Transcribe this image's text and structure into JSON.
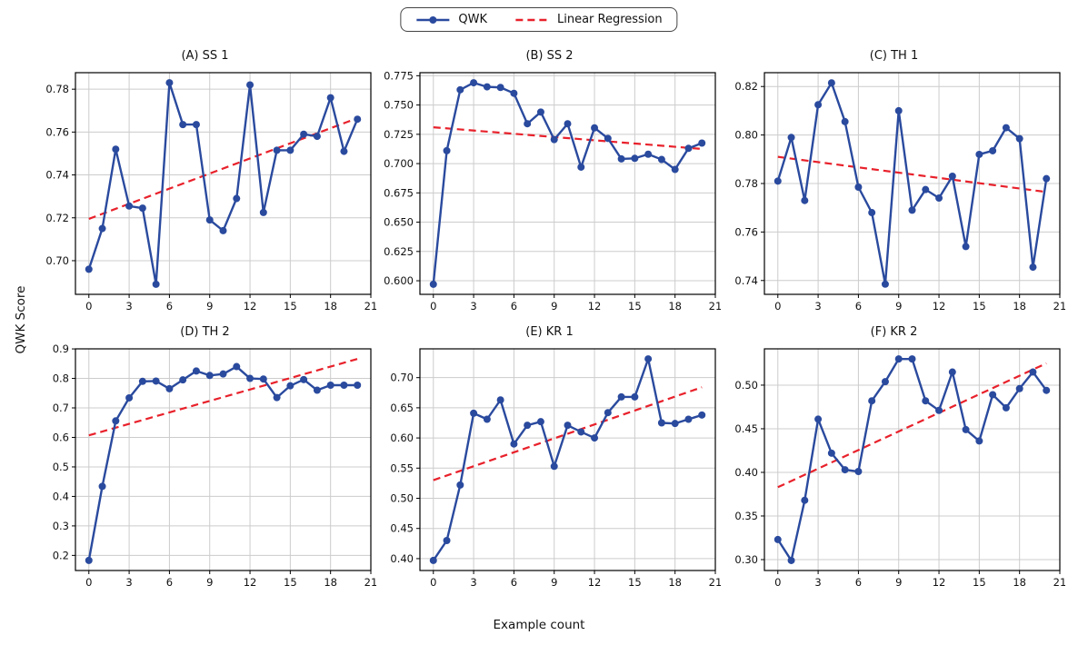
{
  "legend": {
    "items": [
      {
        "label": "QWK",
        "marker": "line-with-dot"
      },
      {
        "label": "Linear Regression",
        "marker": "dashed-line"
      }
    ]
  },
  "axes_labels": {
    "x": "Example count",
    "y": "QWK Score"
  },
  "colors": {
    "line": "#2a4a9e",
    "regression": "#e8212b",
    "grid": "#cccccc",
    "spine": "#000000",
    "background": "#ffffff"
  },
  "x_values": [
    0,
    1,
    2,
    3,
    4,
    5,
    6,
    7,
    8,
    9,
    10,
    11,
    12,
    13,
    14,
    15,
    16,
    17,
    18,
    19,
    20
  ],
  "chart_data": [
    {
      "type": "line",
      "title": "(A) SS 1",
      "series": [
        {
          "name": "QWK",
          "values": [
            0.696,
            0.715,
            0.752,
            0.7255,
            0.7245,
            0.689,
            0.783,
            0.7635,
            0.7635,
            0.719,
            0.714,
            0.729,
            0.782,
            0.7225,
            0.7515,
            0.7515,
            0.759,
            0.758,
            0.776,
            0.751,
            0.766
          ]
        }
      ],
      "values": [
        0.696,
        0.715,
        0.752,
        0.7255,
        0.7245,
        0.689,
        0.783,
        0.7635,
        0.7635,
        0.719,
        0.714,
        0.729,
        0.782,
        0.7225,
        0.7515,
        0.7515,
        0.759,
        0.758,
        0.776,
        0.751,
        0.766
      ],
      "regression": {
        "x": [
          0,
          20
        ],
        "y": [
          0.7195,
          0.7665
        ]
      },
      "xlim": [
        -1,
        21
      ],
      "ylim": [
        0.6843,
        0.7877
      ],
      "xticks": [
        0,
        3,
        6,
        9,
        12,
        15,
        18,
        21
      ],
      "xtick_labels": [
        "0",
        "3",
        "6",
        "9",
        "12",
        "15",
        "18",
        "21"
      ],
      "yticks": [
        0.7,
        0.72,
        0.74,
        0.76,
        0.78
      ],
      "ytick_labels": [
        "0.70",
        "0.72",
        "0.74",
        "0.76",
        "0.78"
      ],
      "grid": true
    },
    {
      "type": "line",
      "title": "(B) SS 2",
      "series": [
        {
          "name": "QWK",
          "values": [
            0.597,
            0.711,
            0.763,
            0.769,
            0.7655,
            0.765,
            0.76,
            0.734,
            0.744,
            0.7205,
            0.734,
            0.697,
            0.7305,
            0.7215,
            0.704,
            0.7045,
            0.708,
            0.7035,
            0.695,
            0.713,
            0.7175
          ]
        }
      ],
      "values": [
        0.597,
        0.711,
        0.763,
        0.769,
        0.7655,
        0.765,
        0.76,
        0.734,
        0.744,
        0.7205,
        0.734,
        0.697,
        0.7305,
        0.7215,
        0.704,
        0.7045,
        0.708,
        0.7035,
        0.695,
        0.713,
        0.7175
      ],
      "regression": {
        "x": [
          0,
          20
        ],
        "y": [
          0.731,
          0.7125
        ]
      },
      "xlim": [
        -1,
        21
      ],
      "ylim": [
        0.5884,
        0.7776
      ],
      "xticks": [
        0,
        3,
        6,
        9,
        12,
        15,
        18,
        21
      ],
      "xtick_labels": [
        "0",
        "3",
        "6",
        "9",
        "12",
        "15",
        "18",
        "21"
      ],
      "yticks": [
        0.6,
        0.625,
        0.65,
        0.675,
        0.7,
        0.725,
        0.75,
        0.775
      ],
      "ytick_labels": [
        "0.600",
        "0.625",
        "0.650",
        "0.675",
        "0.700",
        "0.725",
        "0.750",
        "0.775"
      ],
      "grid": true
    },
    {
      "type": "line",
      "title": "(C) TH 1",
      "series": [
        {
          "name": "QWK",
          "values": [
            0.781,
            0.799,
            0.773,
            0.8125,
            0.8215,
            0.8055,
            0.7785,
            0.768,
            0.7385,
            0.81,
            0.769,
            0.7775,
            0.774,
            0.783,
            0.754,
            0.792,
            0.7935,
            0.803,
            0.7985,
            0.7455,
            0.782
          ]
        }
      ],
      "values": [
        0.781,
        0.799,
        0.773,
        0.8125,
        0.8215,
        0.8055,
        0.7785,
        0.768,
        0.7385,
        0.81,
        0.769,
        0.7775,
        0.774,
        0.783,
        0.754,
        0.792,
        0.7935,
        0.803,
        0.7985,
        0.7455,
        0.782
      ],
      "regression": {
        "x": [
          0,
          20
        ],
        "y": [
          0.791,
          0.7765
        ]
      },
      "xlim": [
        -1,
        21
      ],
      "ylim": [
        0.7343,
        0.8257
      ],
      "xticks": [
        0,
        3,
        6,
        9,
        12,
        15,
        18,
        21
      ],
      "xtick_labels": [
        "0",
        "3",
        "6",
        "9",
        "12",
        "15",
        "18",
        "21"
      ],
      "yticks": [
        0.74,
        0.76,
        0.78,
        0.8,
        0.82
      ],
      "ytick_labels": [
        "0.74",
        "0.76",
        "0.78",
        "0.80",
        "0.82"
      ],
      "grid": true
    },
    {
      "type": "line",
      "title": "(D) TH 2",
      "series": [
        {
          "name": "QWK",
          "values": [
            0.183,
            0.434,
            0.656,
            0.734,
            0.79,
            0.791,
            0.765,
            0.795,
            0.825,
            0.81,
            0.815,
            0.84,
            0.8,
            0.798,
            0.735,
            0.775,
            0.796,
            0.76,
            0.777,
            0.777,
            0.777
          ]
        }
      ],
      "values": [
        0.183,
        0.434,
        0.656,
        0.734,
        0.79,
        0.791,
        0.765,
        0.795,
        0.825,
        0.81,
        0.815,
        0.84,
        0.8,
        0.798,
        0.735,
        0.775,
        0.796,
        0.76,
        0.777,
        0.777,
        0.777
      ],
      "regression": {
        "x": [
          0,
          20
        ],
        "y": [
          0.607,
          0.866
        ]
      },
      "xlim": [
        -1,
        21
      ],
      "ylim": [
        0.1488,
        0.9002
      ],
      "xticks": [
        0,
        3,
        6,
        9,
        12,
        15,
        18,
        21
      ],
      "xtick_labels": [
        "0",
        "3",
        "6",
        "9",
        "12",
        "15",
        "18",
        "21"
      ],
      "yticks": [
        0.2,
        0.3,
        0.4,
        0.5,
        0.6,
        0.7,
        0.8,
        0.9
      ],
      "ytick_labels": [
        "0.2",
        "0.3",
        "0.4",
        "0.5",
        "0.6",
        "0.7",
        "0.8",
        "0.9"
      ],
      "grid": true
    },
    {
      "type": "line",
      "title": "(E) KR 1",
      "series": [
        {
          "name": "QWK",
          "values": [
            0.397,
            0.43,
            0.522,
            0.641,
            0.631,
            0.663,
            0.59,
            0.621,
            0.627,
            0.553,
            0.621,
            0.61,
            0.6,
            0.642,
            0.668,
            0.668,
            0.731,
            0.625,
            0.624,
            0.631,
            0.638
          ]
        }
      ],
      "values": [
        0.397,
        0.43,
        0.522,
        0.641,
        0.631,
        0.663,
        0.59,
        0.621,
        0.627,
        0.553,
        0.621,
        0.61,
        0.6,
        0.642,
        0.668,
        0.668,
        0.731,
        0.625,
        0.624,
        0.631,
        0.638
      ],
      "regression": {
        "x": [
          0,
          20
        ],
        "y": [
          0.53,
          0.684
        ]
      },
      "xlim": [
        -1,
        21
      ],
      "ylim": [
        0.3803,
        0.7477
      ],
      "xticks": [
        0,
        3,
        6,
        9,
        12,
        15,
        18,
        21
      ],
      "xtick_labels": [
        "0",
        "3",
        "6",
        "9",
        "12",
        "15",
        "18",
        "21"
      ],
      "yticks": [
        0.4,
        0.45,
        0.5,
        0.55,
        0.6,
        0.65,
        0.7
      ],
      "ytick_labels": [
        "0.40",
        "0.45",
        "0.50",
        "0.55",
        "0.60",
        "0.65",
        "0.70"
      ],
      "grid": true
    },
    {
      "type": "line",
      "title": "(F) KR 2",
      "series": [
        {
          "name": "QWK",
          "values": [
            0.323,
            0.299,
            0.368,
            0.461,
            0.422,
            0.403,
            0.401,
            0.482,
            0.504,
            0.53,
            0.53,
            0.482,
            0.471,
            0.515,
            0.449,
            0.436,
            0.489,
            0.474,
            0.496,
            0.515,
            0.494
          ]
        }
      ],
      "values": [
        0.323,
        0.299,
        0.368,
        0.461,
        0.422,
        0.403,
        0.401,
        0.482,
        0.504,
        0.53,
        0.53,
        0.482,
        0.471,
        0.515,
        0.449,
        0.436,
        0.489,
        0.474,
        0.496,
        0.515,
        0.494
      ],
      "regression": {
        "x": [
          0,
          20
        ],
        "y": [
          0.383,
          0.525
        ]
      },
      "xlim": [
        -1,
        21
      ],
      "ylim": [
        0.2875,
        0.5416
      ],
      "xticks": [
        0,
        3,
        6,
        9,
        12,
        15,
        18,
        21
      ],
      "xtick_labels": [
        "0",
        "3",
        "6",
        "9",
        "12",
        "15",
        "18",
        "21"
      ],
      "yticks": [
        0.3,
        0.35,
        0.4,
        0.45,
        0.5
      ],
      "ytick_labels": [
        "0.30",
        "0.35",
        "0.40",
        "0.45",
        "0.50"
      ],
      "grid": true
    }
  ]
}
